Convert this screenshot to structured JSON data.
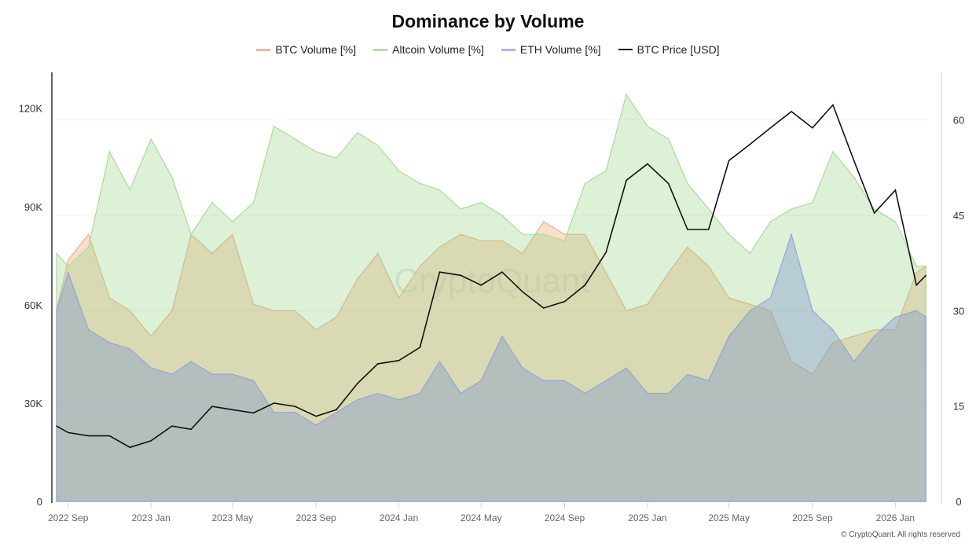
{
  "chart_data": {
    "type": "area",
    "title": "Dominance by Volume",
    "legend_position": "top",
    "grid": true,
    "watermark": "CryptoQuant",
    "copyright": "© CryptoQuant. All rights reserved",
    "x_ticks": [
      "2022 Sep",
      "2023 Jan",
      "2023 May",
      "2023 Sep",
      "2024 Jan",
      "2024 May",
      "2024 Sep",
      "2025 Jan",
      "2025 May",
      "2025 Sep",
      "2026 Jan"
    ],
    "x_tick_dates": [
      "2022-09-01",
      "2023-01-01",
      "2023-05-01",
      "2023-09-01",
      "2024-01-01",
      "2024-05-01",
      "2024-09-01",
      "2025-01-01",
      "2025-05-01",
      "2025-09-01",
      "2026-01-01"
    ],
    "xlim": [
      "2022-08-15",
      "2026-02-17"
    ],
    "y_left": {
      "label": "",
      "ticks": [
        "0",
        "30K",
        "60K",
        "90K",
        "120K"
      ],
      "range": [
        0,
        130000
      ]
    },
    "y_right": {
      "label": "",
      "ticks": [
        "0",
        "15",
        "30",
        "45",
        "60"
      ],
      "range": [
        0,
        67
      ]
    },
    "x": [
      "2022-08-15",
      "2022-09-01",
      "2022-10-01",
      "2022-11-01",
      "2022-12-01",
      "2023-01-01",
      "2023-02-01",
      "2023-03-01",
      "2023-04-01",
      "2023-05-01",
      "2023-06-01",
      "2023-07-01",
      "2023-08-01",
      "2023-09-01",
      "2023-10-01",
      "2023-11-01",
      "2023-12-01",
      "2024-01-01",
      "2024-02-01",
      "2024-03-01",
      "2024-04-01",
      "2024-05-01",
      "2024-06-01",
      "2024-07-01",
      "2024-08-01",
      "2024-09-01",
      "2024-10-01",
      "2024-11-01",
      "2024-12-01",
      "2025-01-01",
      "2025-02-01",
      "2025-03-01",
      "2025-04-01",
      "2025-05-01",
      "2025-06-01",
      "2025-07-01",
      "2025-08-01",
      "2025-09-01",
      "2025-10-01",
      "2025-11-01",
      "2025-12-01",
      "2026-01-01",
      "2026-02-01",
      "2026-02-15"
    ],
    "series": [
      {
        "name": "BTC Volume [%]",
        "axis": "right",
        "color": "#f0a87a",
        "values": [
          30,
          38,
          42,
          32,
          30,
          26,
          30,
          42,
          39,
          42,
          31,
          30,
          30,
          27,
          29,
          35,
          39,
          32,
          37,
          40,
          42,
          41,
          41,
          39,
          44,
          42,
          42,
          36,
          30,
          31,
          36,
          40,
          37,
          32,
          31,
          30,
          22,
          20,
          25,
          26,
          27,
          27,
          36,
          37
        ]
      },
      {
        "name": "Altcoin Volume [%]",
        "axis": "right",
        "color": "#9fd88e",
        "values": [
          39,
          37,
          40,
          55,
          49,
          57,
          51,
          42,
          47,
          44,
          47,
          59,
          57,
          55,
          54,
          58,
          56,
          52,
          50,
          49,
          46,
          47,
          45,
          42,
          42,
          41,
          50,
          52,
          64,
          59,
          57,
          50,
          46,
          42,
          39,
          44,
          46,
          47,
          55,
          51,
          46,
          44,
          37,
          37
        ]
      },
      {
        "name": "ETH Volume [%]",
        "axis": "right",
        "color": "#8aa2dc",
        "values": [
          30,
          36,
          27,
          25,
          24,
          21,
          20,
          22,
          20,
          20,
          19,
          14,
          14,
          12,
          14,
          16,
          17,
          16,
          17,
          22,
          17,
          19,
          26,
          21,
          19,
          19,
          17,
          19,
          21,
          17,
          17,
          20,
          19,
          26,
          30,
          32,
          42,
          30,
          27,
          22,
          26,
          29,
          30,
          29
        ]
      },
      {
        "name": "BTC Price [USD]",
        "axis": "left",
        "color": "#111111",
        "values": [
          23000,
          21000,
          20000,
          20000,
          16500,
          18500,
          23000,
          22000,
          29000,
          28000,
          27000,
          30000,
          29000,
          26000,
          28000,
          36000,
          42000,
          43000,
          47000,
          70000,
          69000,
          66000,
          70000,
          64000,
          59000,
          61000,
          66000,
          76000,
          98000,
          103000,
          97000,
          83000,
          83000,
          104000,
          109000,
          114000,
          119000,
          114000,
          121000,
          104000,
          88000,
          95000,
          66000,
          69000
        ]
      }
    ]
  }
}
